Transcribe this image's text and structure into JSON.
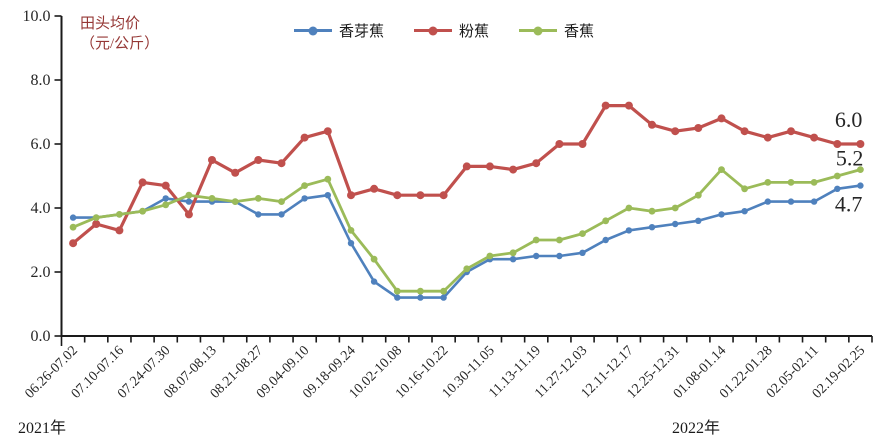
{
  "chart_data": {
    "type": "line",
    "title": "田头均价",
    "title_unit": "（元/公斤）",
    "ylabel": "田头均价（元/公斤）",
    "ylim": [
      0,
      10
    ],
    "y_tick_values": [
      0,
      2,
      4,
      6,
      8,
      10
    ],
    "y_tick_labels": [
      "0.0",
      "2.0",
      "4.0",
      "6.0",
      "8.0",
      "10.0"
    ],
    "n_points": 35,
    "x_label_interval": 2,
    "x_tick_labels": [
      "06.26-07.02",
      "07.10-07.16",
      "07.24-07.30",
      "08.07-08.13",
      "08.21-08.27",
      "09.04-09.10",
      "09.18-09.24",
      "10.02-10.08",
      "10.16-10.22",
      "10.30-11.05",
      "11.13-11.19",
      "11.27-12.03",
      "12.11-12.17",
      "12.25-12.31",
      "01.08-01.14",
      "01.22-01.28",
      "02.05-02.11",
      "02.19-02.25"
    ],
    "year_left": "2021年",
    "year_right": "2022年",
    "grid": false,
    "legend_position": "top",
    "axis_color": "#1a1a1a",
    "text_color": "#262626",
    "title_color": "#953735",
    "series": [
      {
        "name": "香芽蕉",
        "key": "xiangyajiao",
        "color": "#4F81BD",
        "end_label": "4.7",
        "values": [
          3.7,
          3.7,
          3.8,
          3.9,
          4.3,
          4.2,
          4.2,
          4.2,
          3.8,
          3.8,
          4.3,
          4.4,
          2.9,
          1.7,
          1.2,
          1.2,
          1.2,
          2.0,
          2.4,
          2.4,
          2.5,
          2.5,
          2.6,
          3.0,
          3.3,
          3.4,
          3.5,
          3.6,
          3.8,
          3.9,
          4.2,
          4.2,
          4.2,
          4.6,
          4.7
        ]
      },
      {
        "name": "粉蕉",
        "key": "fenjiao",
        "color": "#C0504D",
        "end_label": "6.0",
        "values": [
          2.9,
          3.5,
          3.3,
          4.8,
          4.7,
          3.8,
          5.5,
          5.1,
          5.5,
          5.4,
          6.2,
          6.4,
          4.4,
          4.6,
          4.4,
          4.4,
          4.4,
          5.3,
          5.3,
          5.2,
          5.4,
          6.0,
          6.0,
          7.2,
          7.2,
          6.6,
          6.4,
          6.5,
          6.8,
          6.4,
          6.2,
          6.4,
          6.2,
          6.0,
          6.0
        ]
      },
      {
        "name": "香蕉",
        "key": "xiangjiao",
        "color": "#9BBB59",
        "end_label": "5.2",
        "values": [
          3.4,
          3.7,
          3.8,
          3.9,
          4.1,
          4.4,
          4.3,
          4.2,
          4.3,
          4.2,
          4.7,
          4.9,
          3.3,
          2.4,
          1.4,
          1.4,
          1.4,
          2.1,
          2.5,
          2.6,
          3.0,
          3.0,
          3.2,
          3.6,
          4.0,
          3.9,
          4.0,
          4.4,
          5.2,
          4.6,
          4.8,
          4.8,
          4.8,
          5.0,
          5.2
        ]
      }
    ]
  }
}
